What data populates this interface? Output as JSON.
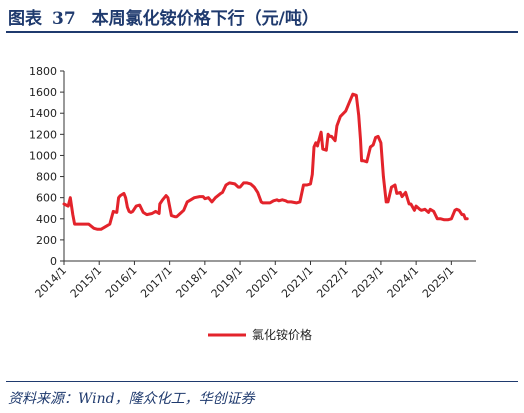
{
  "header": {
    "label": "图表",
    "number": "37",
    "title": "本周氯化铵价格下行（元/吨）"
  },
  "source": "资料来源：Wind，隆众化工，华创证券",
  "colors": {
    "line": "#e3232b",
    "title": "#1f3a6e"
  },
  "chart_data": {
    "type": "line",
    "title": "",
    "xlabel": "",
    "ylabel": "",
    "ylim": [
      0,
      1800
    ],
    "yticks": [
      "0",
      "200",
      "400",
      "600",
      "800",
      "1000",
      "1200",
      "1400",
      "1600",
      "1800"
    ],
    "xlim": [
      2014.0,
      2025.7
    ],
    "xticks": [
      {
        "label": "2014/1",
        "x": 2014.0
      },
      {
        "label": "2015/1",
        "x": 2015.0
      },
      {
        "label": "2016/1",
        "x": 2016.0
      },
      {
        "label": "2017/1",
        "x": 2017.0
      },
      {
        "label": "2018/1",
        "x": 2018.0
      },
      {
        "label": "2019/1",
        "x": 2019.0
      },
      {
        "label": "2020/1",
        "x": 2020.0
      },
      {
        "label": "2021/1",
        "x": 2021.0
      },
      {
        "label": "2022/1",
        "x": 2022.0
      },
      {
        "label": "2023/1",
        "x": 2023.0
      },
      {
        "label": "2024/1",
        "x": 2024.0
      },
      {
        "label": "2025/1",
        "x": 2025.0
      }
    ],
    "grid": false,
    "legend": "bottom-center",
    "series": [
      {
        "name": "氯化铵价格",
        "x": [
          2014.0,
          2014.12,
          2014.18,
          2014.25,
          2014.3,
          2014.38,
          2014.5,
          2014.7,
          2014.85,
          2014.95,
          2015.05,
          2015.2,
          2015.3,
          2015.4,
          2015.5,
          2015.55,
          2015.6,
          2015.7,
          2015.75,
          2015.8,
          2015.85,
          2015.9,
          2015.95,
          2016.05,
          2016.15,
          2016.25,
          2016.35,
          2016.5,
          2016.6,
          2016.7,
          2016.72,
          2016.8,
          2016.9,
          2016.95,
          2017.05,
          2017.15,
          2017.2,
          2017.3,
          2017.4,
          2017.5,
          2017.6,
          2017.7,
          2017.85,
          2017.95,
          2018.0,
          2018.1,
          2018.2,
          2018.3,
          2018.45,
          2018.5,
          2018.6,
          2018.7,
          2018.85,
          2018.95,
          2019.0,
          2019.1,
          2019.2,
          2019.3,
          2019.4,
          2019.5,
          2019.6,
          2019.65,
          2019.75,
          2019.85,
          2019.95,
          2020.05,
          2020.1,
          2020.2,
          2020.3,
          2020.35,
          2020.45,
          2020.6,
          2020.7,
          2020.8,
          2020.9,
          2021.0,
          2021.05,
          2021.1,
          2021.15,
          2021.2,
          2021.22,
          2021.3,
          2021.35,
          2021.45,
          2021.5,
          2021.55,
          2021.6,
          2021.7,
          2021.75,
          2021.85,
          2022.0,
          2022.1,
          2022.2,
          2022.3,
          2022.37,
          2022.42,
          2022.45,
          2022.5,
          2022.6,
          2022.7,
          2022.78,
          2022.85,
          2022.92,
          2023.0,
          2023.07,
          2023.15,
          2023.2,
          2023.3,
          2023.4,
          2023.45,
          2023.55,
          2023.6,
          2023.7,
          2023.8,
          2023.85,
          2023.95,
          2024.0,
          2024.1,
          2024.15,
          2024.25,
          2024.35,
          2024.4,
          2024.5,
          2024.6,
          2024.7,
          2024.8,
          2024.9,
          2025.0,
          2025.1,
          2025.15,
          2025.22,
          2025.3,
          2025.35,
          2025.4,
          2025.45
        ],
        "y": [
          540,
          520,
          600,
          440,
          350,
          350,
          350,
          350,
          310,
          300,
          300,
          330,
          350,
          470,
          460,
          600,
          620,
          640,
          600,
          510,
          470,
          460,
          470,
          520,
          530,
          460,
          440,
          450,
          470,
          450,
          540,
          580,
          620,
          600,
          430,
          420,
          420,
          450,
          480,
          560,
          580,
          600,
          610,
          610,
          590,
          600,
          560,
          600,
          640,
          650,
          720,
          740,
          730,
          700,
          700,
          740,
          740,
          730,
          700,
          650,
          560,
          550,
          550,
          550,
          570,
          580,
          570,
          580,
          570,
          560,
          560,
          550,
          560,
          720,
          720,
          730,
          820,
          1080,
          1120,
          1090,
          1120,
          1220,
          1060,
          1050,
          1200,
          1180,
          1180,
          1140,
          1280,
          1370,
          1420,
          1500,
          1580,
          1570,
          1380,
          1150,
          950,
          950,
          940,
          1080,
          1100,
          1170,
          1180,
          1120,
          800,
          560,
          560,
          700,
          720,
          640,
          650,
          610,
          650,
          540,
          540,
          480,
          520,
          490,
          480,
          490,
          460,
          490,
          470,
          400,
          400,
          390,
          390,
          400,
          480,
          490,
          480,
          440,
          440,
          400,
          400
        ]
      }
    ]
  }
}
